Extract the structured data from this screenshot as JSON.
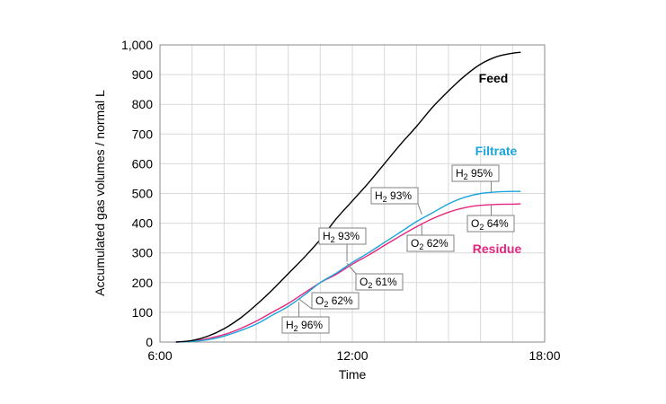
{
  "chart_data": {
    "type": "line",
    "xlabel": "Time",
    "ylabel": "Accumulated gas volumes / normal L",
    "x_ticks": [
      "6:00",
      "12:00",
      "18:00"
    ],
    "x_tick_hours": [
      6,
      12,
      18
    ],
    "xlim_hours": [
      6,
      18
    ],
    "y_ticks": [
      "0",
      "100",
      "200",
      "300",
      "400",
      "500",
      "600",
      "700",
      "800",
      "900",
      "1,000"
    ],
    "y_tick_values": [
      0,
      100,
      200,
      300,
      400,
      500,
      600,
      700,
      800,
      900,
      1000
    ],
    "ylim": [
      0,
      1000
    ],
    "grid": true,
    "series": [
      {
        "name": "Feed",
        "color": "#000000",
        "x": [
          "6:30",
          "7:00",
          "7:30",
          "8:00",
          "8:30",
          "9:00",
          "9:30",
          "10:00",
          "10:30",
          "11:00",
          "11:30",
          "12:00",
          "12:30",
          "13:00",
          "13:30",
          "14:00",
          "14:30",
          "15:00",
          "15:30",
          "16:00",
          "16:30",
          "17:00",
          "17:15"
        ],
        "y": [
          0,
          5,
          20,
          45,
          80,
          125,
          175,
          230,
          285,
          345,
          415,
          475,
          535,
          600,
          665,
          725,
          790,
          845,
          895,
          935,
          960,
          972,
          975
        ]
      },
      {
        "name": "Filtrate",
        "color": "#1aa5dc",
        "x": [
          "6:30",
          "7:00",
          "7:30",
          "8:00",
          "8:30",
          "9:00",
          "9:30",
          "10:00",
          "10:30",
          "11:00",
          "11:30",
          "12:00",
          "12:30",
          "13:00",
          "13:30",
          "14:00",
          "14:30",
          "15:00",
          "15:30",
          "16:00",
          "16:30",
          "17:00",
          "17:15"
        ],
        "y": [
          0,
          2,
          8,
          20,
          38,
          60,
          90,
          120,
          158,
          200,
          232,
          268,
          300,
          335,
          370,
          405,
          435,
          465,
          487,
          500,
          505,
          507,
          507
        ]
      },
      {
        "name": "Residue",
        "color": "#e6267e",
        "x": [
          "6:30",
          "7:00",
          "7:30",
          "8:00",
          "8:30",
          "9:00",
          "9:30",
          "10:00",
          "10:30",
          "11:00",
          "11:30",
          "12:00",
          "12:30",
          "13:00",
          "13:30",
          "14:00",
          "14:30",
          "15:00",
          "15:30",
          "16:00",
          "16:30",
          "17:00",
          "17:15"
        ],
        "y": [
          0,
          3,
          12,
          25,
          45,
          70,
          100,
          130,
          165,
          200,
          228,
          262,
          292,
          325,
          357,
          388,
          415,
          437,
          452,
          460,
          463,
          464,
          465
        ]
      }
    ],
    "annotations": [
      {
        "species": "H",
        "sub": "2",
        "value": "96%",
        "at_x": "10:20",
        "at_y": 135
      },
      {
        "species": "O",
        "sub": "2",
        "value": "62%",
        "at_x": "10:20",
        "at_y": 145
      },
      {
        "species": "H",
        "sub": "2",
        "value": "93%",
        "at_x": "11:50",
        "at_y": 270
      },
      {
        "species": "O",
        "sub": "2",
        "value": "61%",
        "at_x": "11:50",
        "at_y": 265
      },
      {
        "species": "H",
        "sub": "2",
        "value": "93%",
        "at_x": "14:10",
        "at_y": 430
      },
      {
        "species": "O",
        "sub": "2",
        "value": "62%",
        "at_x": "14:10",
        "at_y": 395
      },
      {
        "species": "H",
        "sub": "2",
        "value": "95%",
        "at_x": "16:20",
        "at_y": 505
      },
      {
        "species": "O",
        "sub": "2",
        "value": "64%",
        "at_x": "16:20",
        "at_y": 462
      }
    ]
  }
}
